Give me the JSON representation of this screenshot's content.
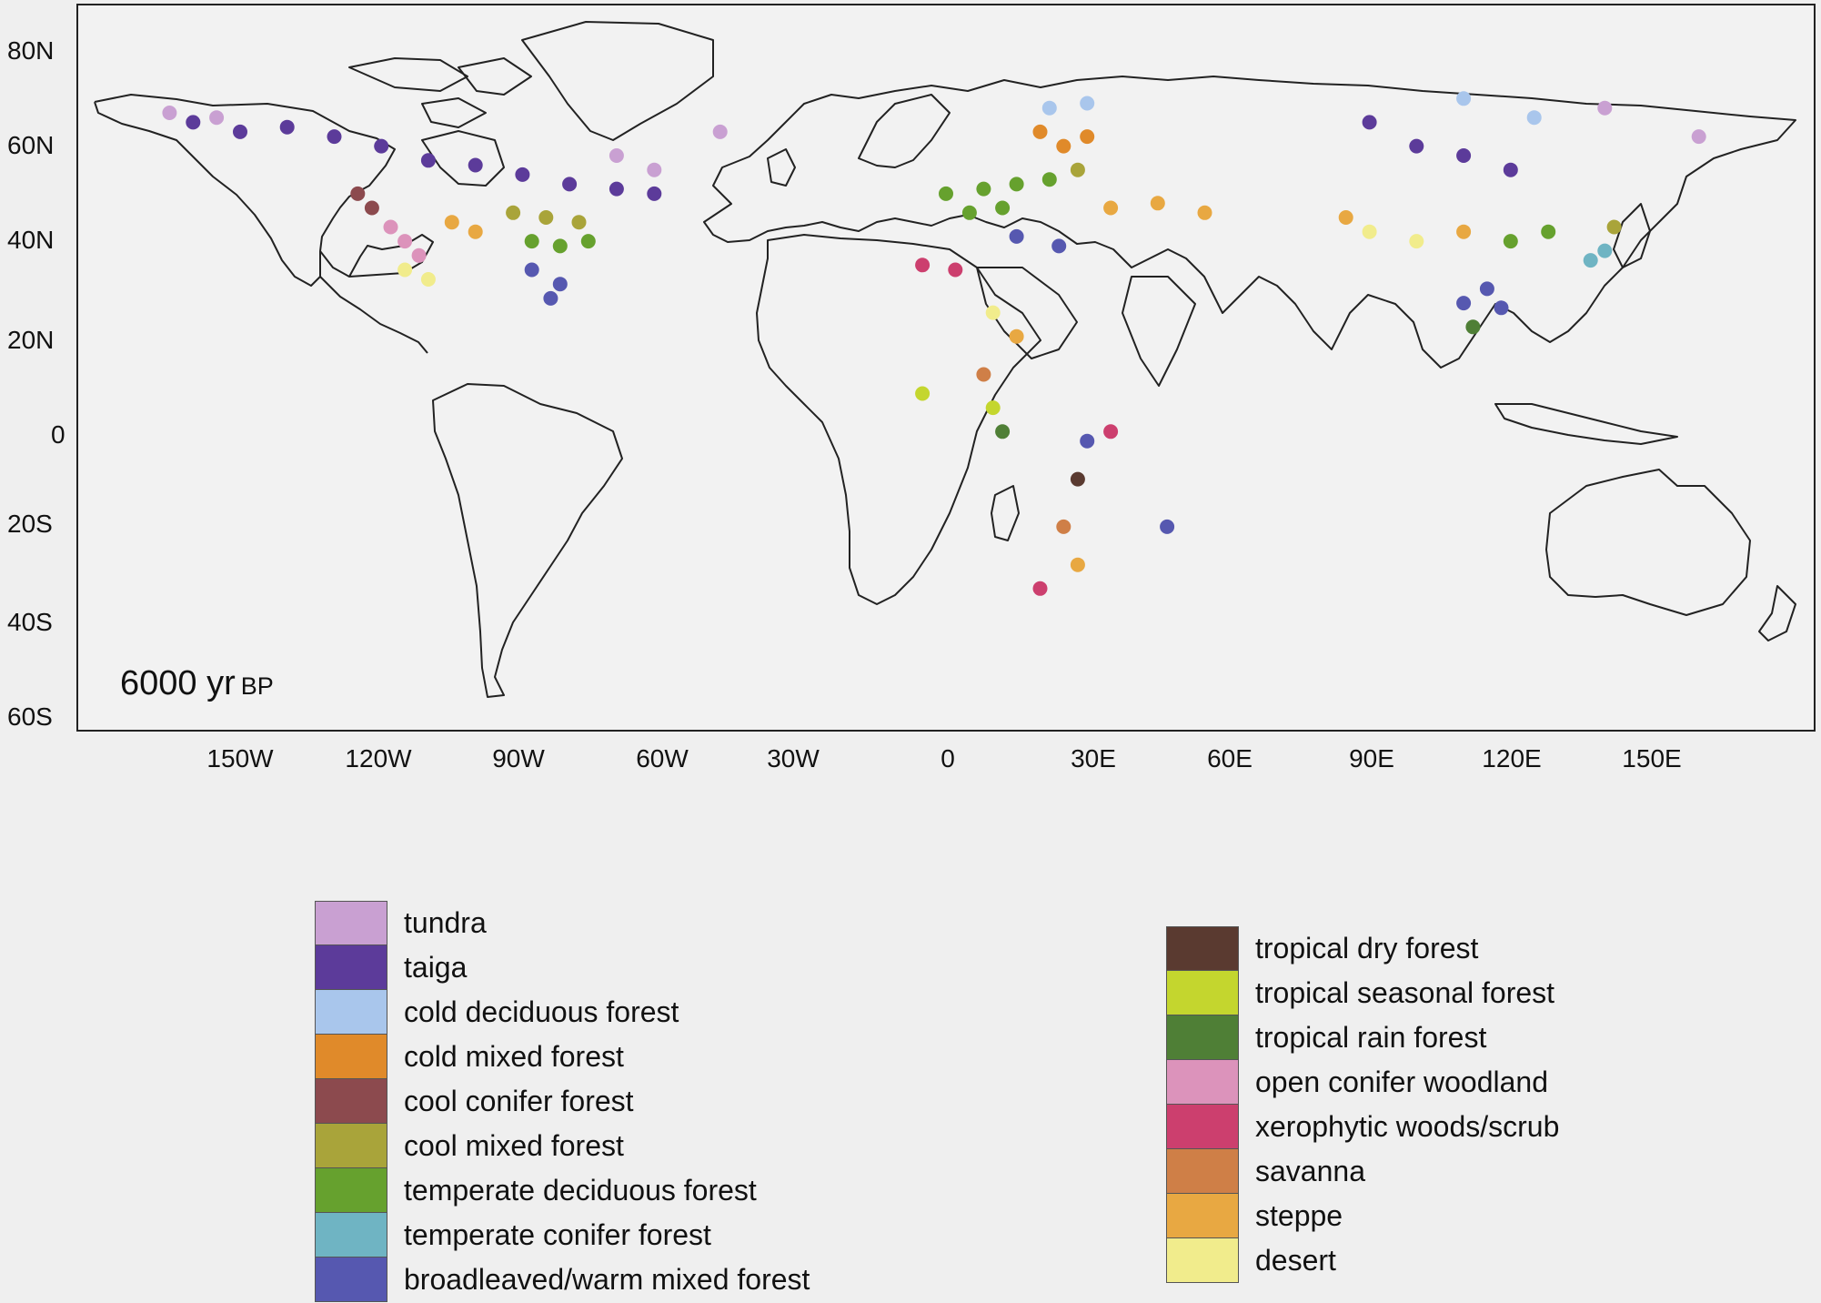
{
  "map": {
    "period_value": "6000 yr",
    "period_unit": "BP",
    "lat_labels": [
      "80N",
      "60N",
      "40N",
      "20N",
      "0",
      "20S",
      "40S",
      "60S"
    ],
    "lon_labels": [
      "150W",
      "120W",
      "90W",
      "60W",
      "30W",
      "0",
      "30E",
      "60E",
      "90E",
      "120E",
      "150E"
    ],
    "lat_values": [
      80,
      60,
      40,
      20,
      0,
      -20,
      -40,
      -60
    ],
    "lon_values": [
      -150,
      -120,
      -90,
      -60,
      -30,
      0,
      30,
      60,
      90,
      120,
      150
    ]
  },
  "legend": {
    "left": [
      {
        "label": "tundra",
        "color": "#c9a0d2"
      },
      {
        "label": "taiga",
        "color": "#5c3b9a"
      },
      {
        "label": "cold deciduous forest",
        "color": "#a9c6ec"
      },
      {
        "label": "cold mixed forest",
        "color": "#e08a2a"
      },
      {
        "label": "cool conifer forest",
        "color": "#8c4a4e"
      },
      {
        "label": "cool mixed forest",
        "color": "#a9a43a"
      },
      {
        "label": "temperate deciduous forest",
        "color": "#66a12e"
      },
      {
        "label": "temperate conifer forest",
        "color": "#6fb4c3"
      },
      {
        "label": "broadleaved/warm mixed forest",
        "color": "#5658b0"
      }
    ],
    "right": [
      {
        "label": "tropical dry forest",
        "color": "#5a3a30"
      },
      {
        "label": "tropical seasonal forest",
        "color": "#c4d62e"
      },
      {
        "label": "tropical rain forest",
        "color": "#4f7f36"
      },
      {
        "label": "open conifer woodland",
        "color": "#dc93bb"
      },
      {
        "label": "xerophytic woods/scrub",
        "color": "#cc3f6e"
      },
      {
        "label": "savanna",
        "color": "#cf7f47"
      },
      {
        "label": "steppe",
        "color": "#e8a842"
      },
      {
        "label": "desert",
        "color": "#f1ec8c"
      }
    ]
  },
  "sites": [
    {
      "biome": "taiga",
      "lon": -160,
      "lat": 65
    },
    {
      "biome": "taiga",
      "lon": -150,
      "lat": 63
    },
    {
      "biome": "taiga",
      "lon": -140,
      "lat": 64
    },
    {
      "biome": "taiga",
      "lon": -130,
      "lat": 62
    },
    {
      "biome": "taiga",
      "lon": -120,
      "lat": 60
    },
    {
      "biome": "taiga",
      "lon": -110,
      "lat": 57
    },
    {
      "biome": "taiga",
      "lon": -100,
      "lat": 56
    },
    {
      "biome": "taiga",
      "lon": -90,
      "lat": 54
    },
    {
      "biome": "taiga",
      "lon": -80,
      "lat": 52
    },
    {
      "biome": "taiga",
      "lon": -70,
      "lat": 51
    },
    {
      "biome": "taiga",
      "lon": -62,
      "lat": 50
    },
    {
      "biome": "tundra",
      "lon": -165,
      "lat": 67
    },
    {
      "biome": "tundra",
      "lon": -155,
      "lat": 66
    },
    {
      "biome": "tundra",
      "lon": -70,
      "lat": 58
    },
    {
      "biome": "tundra",
      "lon": -62,
      "lat": 55
    },
    {
      "biome": "tundra",
      "lon": -48,
      "lat": 63
    },
    {
      "biome": "cool conifer forest",
      "lon": -125,
      "lat": 50
    },
    {
      "biome": "cool conifer forest",
      "lon": -122,
      "lat": 47
    },
    {
      "biome": "open conifer woodland",
      "lon": -118,
      "lat": 43
    },
    {
      "biome": "open conifer woodland",
      "lon": -115,
      "lat": 40
    },
    {
      "biome": "open conifer woodland",
      "lon": -112,
      "lat": 37
    },
    {
      "biome": "desert",
      "lon": -115,
      "lat": 34
    },
    {
      "biome": "desert",
      "lon": -110,
      "lat": 32
    },
    {
      "biome": "steppe",
      "lon": -105,
      "lat": 44
    },
    {
      "biome": "steppe",
      "lon": -100,
      "lat": 42
    },
    {
      "biome": "cool mixed forest",
      "lon": -92,
      "lat": 46
    },
    {
      "biome": "cool mixed forest",
      "lon": -85,
      "lat": 45
    },
    {
      "biome": "cool mixed forest",
      "lon": -78,
      "lat": 44
    },
    {
      "biome": "temperate deciduous forest",
      "lon": -88,
      "lat": 40
    },
    {
      "biome": "temperate deciduous forest",
      "lon": -82,
      "lat": 39
    },
    {
      "biome": "temperate deciduous forest",
      "lon": -76,
      "lat": 40
    },
    {
      "biome": "broadleaved/warm mixed forest",
      "lon": -88,
      "lat": 34
    },
    {
      "biome": "broadleaved/warm mixed forest",
      "lon": -82,
      "lat": 31
    },
    {
      "biome": "broadleaved/warm mixed forest",
      "lon": -84,
      "lat": 28
    },
    {
      "biome": "temperate deciduous forest",
      "lon": 0,
      "lat": 50
    },
    {
      "biome": "temperate deciduous forest",
      "lon": 8,
      "lat": 51
    },
    {
      "biome": "temperate deciduous forest",
      "lon": 15,
      "lat": 52
    },
    {
      "biome": "temperate deciduous forest",
      "lon": 22,
      "lat": 53
    },
    {
      "biome": "temperate deciduous forest",
      "lon": 5,
      "lat": 46
    },
    {
      "biome": "temperate deciduous forest",
      "lon": 12,
      "lat": 47
    },
    {
      "biome": "cold mixed forest",
      "lon": 25,
      "lat": 60
    },
    {
      "biome": "cold mixed forest",
      "lon": 30,
      "lat": 62
    },
    {
      "biome": "cold mixed forest",
      "lon": 20,
      "lat": 63
    },
    {
      "biome": "cool mixed forest",
      "lon": 28,
      "lat": 55
    },
    {
      "biome": "cold deciduous forest",
      "lon": 22,
      "lat": 68
    },
    {
      "biome": "cold deciduous forest",
      "lon": 30,
      "lat": 69
    },
    {
      "biome": "broadleaved/warm mixed forest",
      "lon": 15,
      "lat": 41
    },
    {
      "biome": "broadleaved/warm mixed forest",
      "lon": 24,
      "lat": 39
    },
    {
      "biome": "steppe",
      "lon": 35,
      "lat": 47
    },
    {
      "biome": "steppe",
      "lon": 45,
      "lat": 48
    },
    {
      "biome": "steppe",
      "lon": 55,
      "lat": 46
    },
    {
      "biome": "xerophytic woods/scrub",
      "lon": -5,
      "lat": 35
    },
    {
      "biome": "xerophytic woods/scrub",
      "lon": 2,
      "lat": 34
    },
    {
      "biome": "desert",
      "lon": 10,
      "lat": 25
    },
    {
      "biome": "steppe",
      "lon": 15,
      "lat": 20
    },
    {
      "biome": "savanna",
      "lon": 8,
      "lat": 12
    },
    {
      "biome": "tropical seasonal forest",
      "lon": -5,
      "lat": 8
    },
    {
      "biome": "tropical seasonal forest",
      "lon": 10,
      "lat": 5
    },
    {
      "biome": "tropical rain forest",
      "lon": 12,
      "lat": 0
    },
    {
      "biome": "xerophytic woods/scrub",
      "lon": 35,
      "lat": 0
    },
    {
      "biome": "broadleaved/warm mixed forest",
      "lon": 30,
      "lat": -2
    },
    {
      "biome": "tropical dry forest",
      "lon": 28,
      "lat": -10
    },
    {
      "biome": "savanna",
      "lon": 25,
      "lat": -20
    },
    {
      "biome": "steppe",
      "lon": 28,
      "lat": -28
    },
    {
      "biome": "xerophytic woods/scrub",
      "lon": 20,
      "lat": -33
    },
    {
      "biome": "broadleaved/warm mixed forest",
      "lon": 47,
      "lat": -20
    },
    {
      "biome": "taiga",
      "lon": 90,
      "lat": 65
    },
    {
      "biome": "taiga",
      "lon": 100,
      "lat": 60
    },
    {
      "biome": "taiga",
      "lon": 110,
      "lat": 58
    },
    {
      "biome": "taiga",
      "lon": 120,
      "lat": 55
    },
    {
      "biome": "cold deciduous forest",
      "lon": 110,
      "lat": 70
    },
    {
      "biome": "cold deciduous forest",
      "lon": 125,
      "lat": 66
    },
    {
      "biome": "tundra",
      "lon": 140,
      "lat": 68
    },
    {
      "biome": "tundra",
      "lon": 160,
      "lat": 62
    },
    {
      "biome": "desert",
      "lon": 90,
      "lat": 42
    },
    {
      "biome": "desert",
      "lon": 100,
      "lat": 40
    },
    {
      "biome": "steppe",
      "lon": 85,
      "lat": 45
    },
    {
      "biome": "steppe",
      "lon": 110,
      "lat": 42
    },
    {
      "biome": "temperate deciduous forest",
      "lon": 120,
      "lat": 40
    },
    {
      "biome": "temperate deciduous forest",
      "lon": 128,
      "lat": 42
    },
    {
      "biome": "broadleaved/warm mixed forest",
      "lon": 115,
      "lat": 30
    },
    {
      "biome": "broadleaved/warm mixed forest",
      "lon": 110,
      "lat": 27
    },
    {
      "biome": "broadleaved/warm mixed forest",
      "lon": 118,
      "lat": 26
    },
    {
      "biome": "tropical rain forest",
      "lon": 112,
      "lat": 22
    },
    {
      "biome": "temperate conifer forest",
      "lon": 137,
      "lat": 36
    },
    {
      "biome": "temperate conifer forest",
      "lon": 140,
      "lat": 38
    },
    {
      "biome": "cool mixed forest",
      "lon": 142,
      "lat": 43
    }
  ]
}
